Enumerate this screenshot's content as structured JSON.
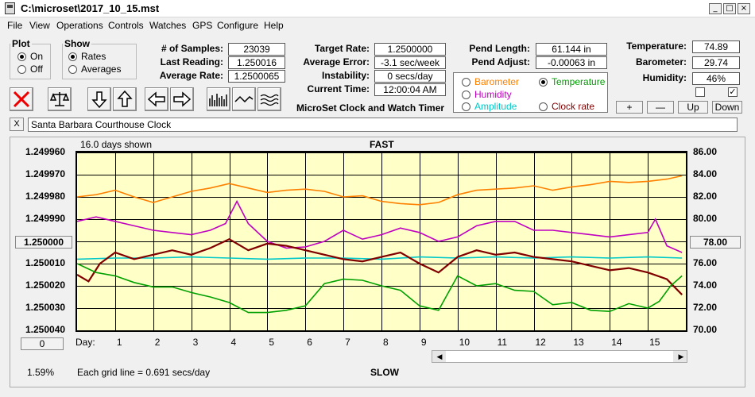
{
  "window": {
    "title": "C:\\microset\\2017_10_15.mst",
    "buttons": [
      "_",
      "□",
      "×"
    ]
  },
  "menu": [
    "File",
    "View",
    "Operations",
    "Controls",
    "Watches",
    "GPS",
    "Configure",
    "Help"
  ],
  "plot_group": {
    "legend": "Plot",
    "options": [
      {
        "label": "On",
        "selected": true
      },
      {
        "label": "Off",
        "selected": false
      }
    ]
  },
  "show_group": {
    "legend": "Show",
    "options": [
      {
        "label": "Rates",
        "selected": true
      },
      {
        "label": "Averages",
        "selected": false
      }
    ]
  },
  "stats": {
    "samples_label": "# of Samples:",
    "samples": "23039",
    "last_label": "Last Reading:",
    "last": "1.250016",
    "avg_label": "Average Rate:",
    "avg": "1.2500065",
    "target_label": "Target Rate:",
    "target": "1.2500000",
    "err_label": "Average Error:",
    "err": "-3.1 sec/week",
    "inst_label": "Instability:",
    "inst": "0 secs/day",
    "time_label": "Current Time:",
    "time": "12:00:04 AM",
    "app_name": "MicroSet Clock and Watch Timer",
    "pend_len_label": "Pend Length:",
    "pend_len": "61.144 in",
    "pend_adj_label": "Pend Adjust:",
    "pend_adj": "-0.00063 in",
    "temp_label": "Temperature:",
    "temp": "74.89",
    "baro_label": "Barometer:",
    "baro": "29.74",
    "hum_label": "Humidity:",
    "hum": "46%"
  },
  "series_select": [
    {
      "label": "Barometer",
      "color": "#ff8000",
      "selected": false
    },
    {
      "label": "Temperature",
      "color": "#00a000",
      "selected": true
    },
    {
      "label": "Humidity",
      "color": "#c000c0",
      "selected": false
    },
    {
      "label": "Amplitude",
      "color": "#00c8c8",
      "selected": false
    },
    {
      "label": "Clock rate",
      "color": "#800000",
      "selected": false
    }
  ],
  "checkboxes": [
    {
      "checked": false
    },
    {
      "checked": true
    }
  ],
  "adjust_buttons": [
    "+",
    "—",
    "Up",
    "Down"
  ],
  "clock_name": "Santa Barbara Courthouse Clock",
  "close_x": "X",
  "chart": {
    "days_shown": "16.0 days shown",
    "top_label": "FAST",
    "bottom_label": "SLOW",
    "grid_note": "Each grid line = 0.691 secs/day",
    "percent": "1.59%",
    "left_button": "1.250000",
    "right_button": "78.00",
    "zero_button": "0",
    "day_label": "Day:"
  },
  "chart_data": {
    "type": "line",
    "x_range": [
      0,
      16
    ],
    "x_ticks": [
      "1",
      "2",
      "3",
      "4",
      "5",
      "6",
      "7",
      "8",
      "9",
      "10",
      "11",
      "12",
      "13",
      "14",
      "15"
    ],
    "y_left_ticks": [
      "1.249960",
      "1.249970",
      "1.249980",
      "1.249990",
      "1.250000",
      "1.250010",
      "1.250020",
      "1.250030",
      "1.250040"
    ],
    "y_left_range": [
      1.24996,
      1.25004
    ],
    "y_right_ticks": [
      "86.00",
      "84.00",
      "82.00",
      "80.00",
      "78.00",
      "76.00",
      "74.00",
      "72.00",
      "70.00"
    ],
    "y_right_range": [
      86,
      70
    ],
    "series": [
      {
        "name": "Barometer",
        "color": "#ff8000",
        "axis": "right",
        "x": [
          0,
          0.5,
          1,
          1.5,
          2,
          2.5,
          3,
          3.5,
          4,
          4.5,
          5,
          5.5,
          6,
          6.5,
          7,
          7.5,
          8,
          8.5,
          9,
          9.5,
          10,
          10.5,
          11,
          11.5,
          12,
          12.5,
          13,
          13.5,
          14,
          14.5,
          15,
          15.5,
          15.9
        ],
        "y": [
          82.0,
          82.2,
          82.6,
          82.0,
          81.5,
          82.0,
          82.5,
          82.8,
          83.2,
          82.8,
          82.4,
          82.6,
          82.7,
          82.5,
          82.0,
          82.1,
          81.6,
          81.4,
          81.3,
          81.5,
          82.2,
          82.6,
          82.7,
          82.8,
          83.0,
          82.6,
          82.9,
          83.1,
          83.4,
          83.3,
          83.4,
          83.6,
          83.9
        ]
      },
      {
        "name": "Humidity",
        "color": "#c000c0",
        "axis": "right",
        "x": [
          0,
          0.5,
          1,
          1.5,
          2,
          2.5,
          3,
          3.5,
          3.9,
          4.2,
          4.5,
          5,
          5.5,
          6,
          6.5,
          7,
          7.5,
          8,
          8.5,
          9,
          9.5,
          10,
          10.5,
          11,
          11.5,
          12,
          12.5,
          13,
          13.5,
          14,
          14.5,
          15,
          15.2,
          15.5,
          15.9
        ],
        "y": [
          79.8,
          80.2,
          79.8,
          79.4,
          79.0,
          78.8,
          78.6,
          79.0,
          79.6,
          81.6,
          79.6,
          78.0,
          77.4,
          77.5,
          78.0,
          79.0,
          78.2,
          78.6,
          79.2,
          78.8,
          78.0,
          78.4,
          79.4,
          79.8,
          79.8,
          79.0,
          79.0,
          78.8,
          78.6,
          78.4,
          78.6,
          78.8,
          80.0,
          77.6,
          77.0
        ]
      },
      {
        "name": "Amplitude",
        "color": "#00c8c8",
        "axis": "right",
        "x": [
          0,
          1,
          2,
          3,
          4,
          5,
          6,
          7,
          8,
          9,
          10,
          11,
          12,
          13,
          14,
          15,
          15.9
        ],
        "y": [
          76.4,
          76.5,
          76.5,
          76.6,
          76.5,
          76.4,
          76.5,
          76.5,
          76.4,
          76.6,
          76.5,
          76.6,
          76.5,
          76.6,
          76.5,
          76.6,
          76.5
        ]
      },
      {
        "name": "Clock rate",
        "color": "#800000",
        "axis": "left",
        "x": [
          0,
          0.3,
          0.6,
          1,
          1.5,
          2,
          2.5,
          3,
          3.5,
          4,
          4.5,
          5,
          5.5,
          6,
          6.5,
          7,
          7.5,
          8,
          8.5,
          9,
          9.5,
          10,
          10.5,
          11,
          11.5,
          12,
          12.5,
          13,
          13.5,
          14,
          14.5,
          15,
          15.5,
          15.9
        ],
        "y": [
          1.250015,
          1.250018,
          1.25001,
          1.250005,
          1.250008,
          1.250006,
          1.250004,
          1.250006,
          1.250003,
          1.249999,
          1.250004,
          1.250001,
          1.250002,
          1.250004,
          1.250006,
          1.250008,
          1.250009,
          1.250007,
          1.250005,
          1.25001,
          1.250014,
          1.250007,
          1.250004,
          1.250006,
          1.250005,
          1.250007,
          1.250008,
          1.250009,
          1.250011,
          1.250013,
          1.250012,
          1.250014,
          1.250017,
          1.250024
        ]
      },
      {
        "name": "Temperature",
        "color": "#00a000",
        "axis": "right",
        "x": [
          0,
          0.5,
          1,
          1.5,
          2,
          2.5,
          3,
          3.5,
          4,
          4.5,
          5,
          5.5,
          6,
          6.5,
          7,
          7.5,
          8,
          8.5,
          9,
          9.5,
          10,
          10.5,
          11,
          11.5,
          12,
          12.5,
          13,
          13.5,
          14,
          14.5,
          15,
          15.3,
          15.6,
          15.9
        ],
        "y": [
          76.0,
          75.2,
          74.9,
          74.3,
          73.9,
          73.9,
          73.4,
          73.0,
          72.5,
          71.6,
          71.6,
          71.8,
          72.2,
          74.2,
          74.6,
          74.5,
          74.0,
          73.6,
          72.2,
          71.8,
          74.9,
          74.0,
          74.2,
          73.6,
          73.5,
          72.3,
          72.5,
          71.8,
          71.7,
          72.4,
          72.0,
          72.6,
          74.0,
          74.9
        ]
      }
    ]
  }
}
